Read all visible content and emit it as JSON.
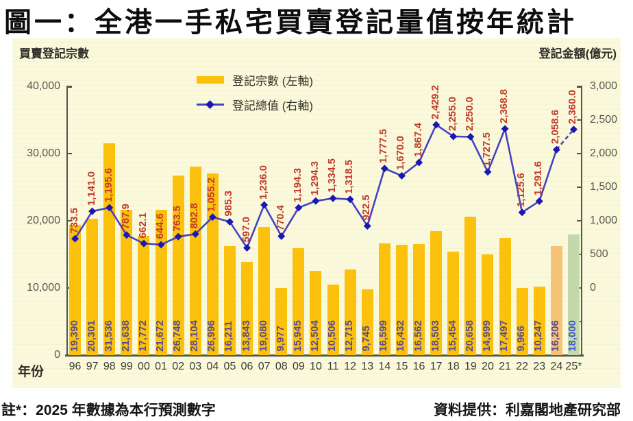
{
  "title": "圖一：全港一手私宅買賣登記量值按年統計",
  "panel": {
    "left_axis_title": "買賣登記宗數",
    "right_axis_title": "登記金額(億元)",
    "xaxis_title": "年份"
  },
  "legend": {
    "bars_label": "登記宗數 (左軸)",
    "line_label": "登記總值 (右軸)"
  },
  "footnote_left": "註*：2025 年數據為本行預測數字",
  "source_right": "資料提供：利嘉閣地產研究部",
  "colors": {
    "panel_bg": "#fbf9dc",
    "bar": "#fbc10d",
    "bar_2024": "#f6c276",
    "bar_2025_forecast": "#c3d9ac",
    "line": "#4543be",
    "marker": "#1c17b4",
    "line_label": "#c03a28",
    "bar_label": "#584c8c",
    "bar_label_2025": "#3c55c8",
    "axis": "#55554a"
  },
  "chart_data": {
    "type": "bar+line combo",
    "title": "全港一手私宅買賣登記量值按年統計",
    "categories": [
      "96",
      "97",
      "98",
      "99",
      "00",
      "01",
      "02",
      "03",
      "04",
      "05",
      "06",
      "07",
      "08",
      "09",
      "10",
      "11",
      "12",
      "13",
      "14",
      "15",
      "16",
      "17",
      "18",
      "19",
      "20",
      "21",
      "22",
      "23",
      "24",
      "25*"
    ],
    "series": [
      {
        "name": "登記宗數 (左軸)",
        "type": "bar",
        "axis": "left",
        "values": [
          19390,
          20301,
          31536,
          21638,
          17772,
          21672,
          26748,
          28104,
          26996,
          16211,
          13843,
          19080,
          9977,
          15945,
          12504,
          10506,
          12715,
          9745,
          16599,
          16432,
          16562,
          18503,
          15454,
          20658,
          14999,
          17497,
          9966,
          10247,
          16206,
          18000
        ]
      },
      {
        "name": "登記總值 (右軸)",
        "type": "line",
        "axis": "right",
        "values": [
          733.5,
          1141.0,
          1195.6,
          787.9,
          662.1,
          644.6,
          763.5,
          802.8,
          1055.2,
          985.3,
          597.0,
          1236.0,
          770.4,
          1194.3,
          1294.3,
          1334.5,
          1318.5,
          922.5,
          1777.5,
          1670.0,
          1867.4,
          2429.2,
          2255.0,
          2250.0,
          1727.5,
          2368.8,
          1125.6,
          1291.6,
          2058.6,
          2360.0
        ]
      }
    ],
    "bar_labels": [
      "19,390",
      "20,301",
      "31,536",
      "21,638",
      "17,772",
      "21,672",
      "26,748",
      "28,104",
      "26,996",
      "16,211",
      "13,843",
      "19,080",
      "9,977",
      "15,945",
      "12,504",
      "10,506",
      "12,715",
      "9,745",
      "16,599",
      "16,432",
      "16,562",
      "18,503",
      "15,454",
      "20,658",
      "14,999",
      "17,497",
      "9,966",
      "10,247",
      "16,206",
      "18,000"
    ],
    "line_labels": [
      "733.5",
      "1,141.0",
      "1,195.6",
      "787.9",
      "662.1",
      "644.6",
      "763.5",
      "802.8",
      "1,055.2",
      "985.3",
      "597.0",
      "1,236.0",
      "770.4",
      "1,194.3",
      "1,294.3",
      "1,334.5",
      "1,318.5",
      "922.5",
      "1,777.5",
      "1,670.0",
      "1,867.4",
      "2,429.2",
      "2,255.0",
      "2,250.0",
      "1,727.5",
      "2,368.8",
      "1,125.6",
      "1,291.6",
      "2,058.6",
      "2,360.0"
    ],
    "left_axis": {
      "label": "買賣登記宗數",
      "min": 0,
      "max": 40000,
      "tick_labels": [
        "40,000",
        "30,000",
        "20,000",
        "10,000",
        "0"
      ],
      "tick_values": [
        40000,
        30000,
        20000,
        10000,
        0
      ]
    },
    "right_axis": {
      "label": "登記金額(億元)",
      "min": -1000,
      "max": 3000,
      "tick_labels": [
        "3,000",
        "2,500",
        "2,000",
        "1,500",
        "1,000",
        "500",
        "0"
      ],
      "tick_values": [
        3000,
        2500,
        2000,
        1500,
        1000,
        500,
        0
      ],
      "unlabeled_tick_values": [
        -500,
        -1000
      ]
    },
    "xlabel": "年份",
    "forecast_index": 29,
    "forecast_style": "green bar, blue label, dashed line segment",
    "legend_position": "top-center-left, no border",
    "grid": false
  }
}
